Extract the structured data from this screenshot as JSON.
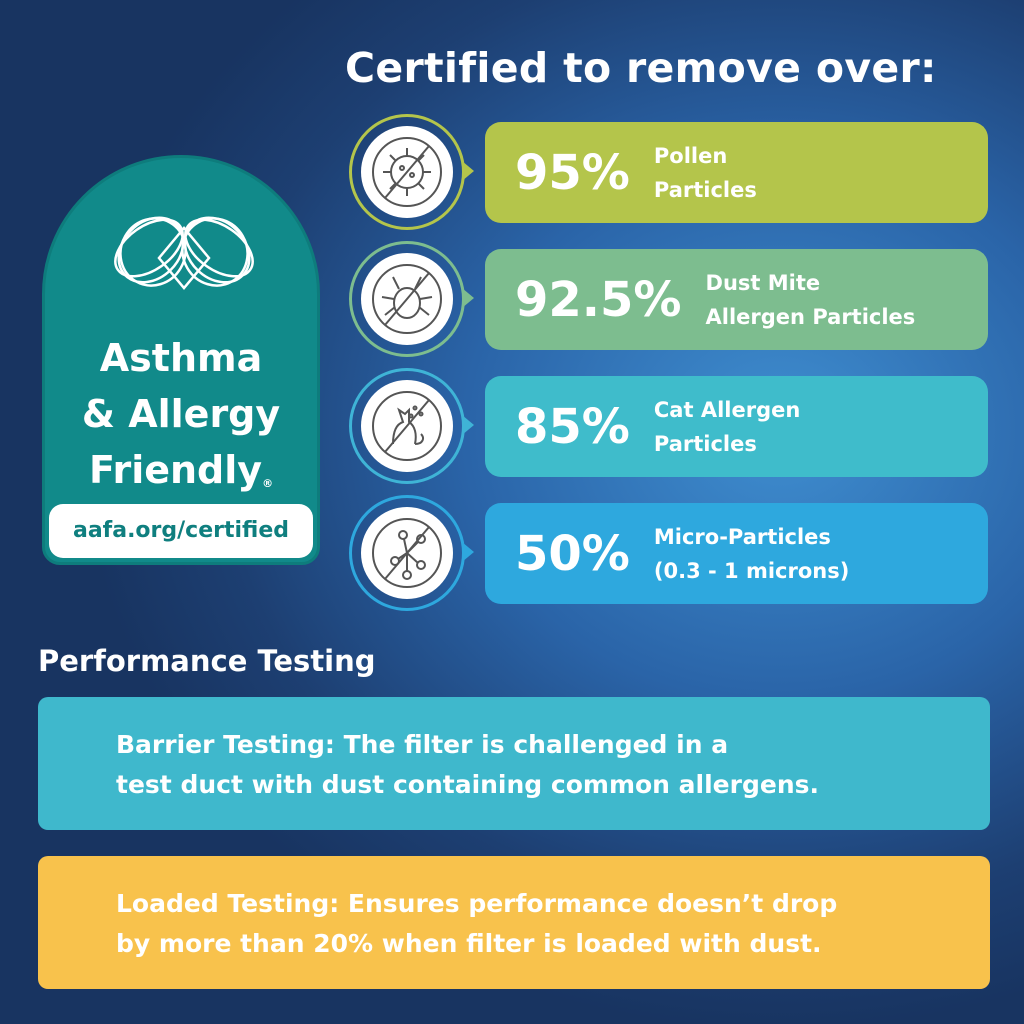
{
  "title": "Certified to remove over:",
  "badge": {
    "line1": "Asthma",
    "line2": "& Allergy",
    "line3": "Friendly",
    "registered": "®",
    "url": "aafa.org/certified",
    "color": "#118a8a"
  },
  "items": [
    {
      "icon": "no-pollen-icon",
      "percent": "95%",
      "label1": "Pollen",
      "label2": "Particles",
      "color": "#b4c54b",
      "ring": "#b4c54b"
    },
    {
      "icon": "no-dust-mite-icon",
      "percent": "92.5%",
      "label1": "Dust Mite",
      "label2": "Allergen Particles",
      "color": "#7dbd8f",
      "ring": "#7dbd8f"
    },
    {
      "icon": "no-cat-allergen-icon",
      "percent": "85%",
      "label1": "Cat Allergen",
      "label2": "Particles",
      "color": "#3fbccb",
      "ring": "#3fb4d6"
    },
    {
      "icon": "no-micro-particles-icon",
      "percent": "50%",
      "label1": "Micro-Particles",
      "label2": "(0.3 - 1 microns)",
      "color": "#2ea8de",
      "ring": "#2ea8de"
    }
  ],
  "performance": {
    "heading": "Performance Testing",
    "barrier": {
      "line1": "Barrier Testing: The filter is challenged in a",
      "line2": "test duct with dust containing common allergens.",
      "color": "#3fb8cc"
    },
    "loaded": {
      "line1": "Loaded Testing: Ensures performance doesn’t drop",
      "line2": "by more than 20% when filter is loaded with dust.",
      "color": "#f8c24c"
    }
  }
}
